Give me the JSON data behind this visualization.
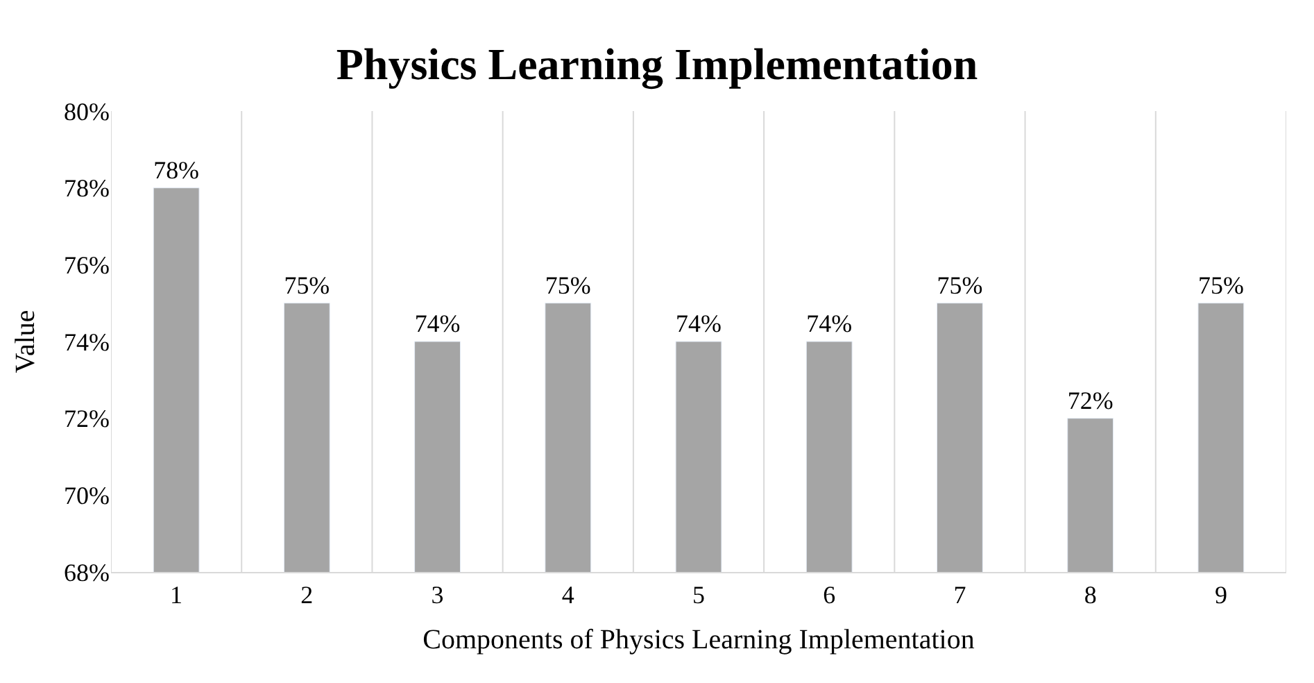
{
  "chart_data": {
    "type": "bar",
    "title": "Physics Learning Implementation",
    "xlabel": "Components of Physics Learning Implementation",
    "ylabel": "Value",
    "categories": [
      "1",
      "2",
      "3",
      "4",
      "5",
      "6",
      "7",
      "8",
      "9"
    ],
    "values": [
      78,
      75,
      74,
      75,
      74,
      74,
      75,
      72,
      75
    ],
    "value_labels": [
      "78%",
      "75%",
      "74%",
      "75%",
      "74%",
      "74%",
      "75%",
      "72%",
      "75%"
    ],
    "color": "#a5a5a5",
    "ylim": [
      68,
      80
    ],
    "yticks": [
      {
        "value": 68,
        "label": "68%"
      },
      {
        "value": 70,
        "label": "70%"
      },
      {
        "value": 72,
        "label": "72%"
      },
      {
        "value": 74,
        "label": "74%"
      },
      {
        "value": 76,
        "label": "76%"
      },
      {
        "value": 78,
        "label": "78%"
      },
      {
        "value": 80,
        "label": "80%"
      }
    ],
    "grid": "x",
    "legend": false
  }
}
